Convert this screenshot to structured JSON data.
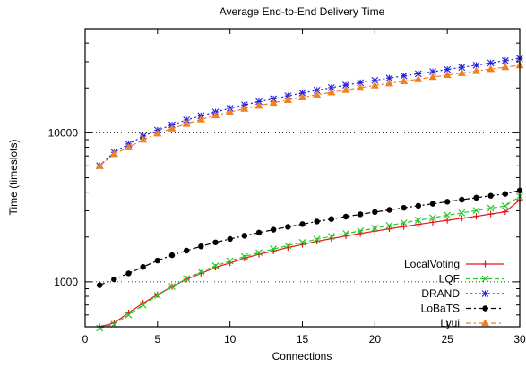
{
  "chart_data": {
    "type": "line",
    "title": "Average End-to-End Delivery Time",
    "xlabel": "Connections",
    "ylabel": "Time (timeslots)",
    "xlim": [
      0,
      30
    ],
    "ylim": [
      500,
      50000
    ],
    "y_scale": "log",
    "x_ticks": [
      0,
      5,
      10,
      15,
      20,
      25,
      30
    ],
    "y_ticks": [
      1000,
      10000
    ],
    "y_tick_labels": [
      "1000",
      "10000"
    ],
    "grid": "horizontal dotted lines at y ticks",
    "legend_position": "bottom-right",
    "x": [
      1,
      2,
      3,
      4,
      5,
      6,
      7,
      8,
      9,
      10,
      11,
      12,
      13,
      14,
      15,
      16,
      17,
      18,
      19,
      20,
      21,
      22,
      23,
      24,
      25,
      26,
      27,
      28,
      29,
      30
    ],
    "series": [
      {
        "name": "LocalVoting",
        "color": "#e8131c",
        "dash": "solid",
        "marker": "plus",
        "values": [
          500,
          530,
          620,
          720,
          820,
          930,
          1040,
          1140,
          1250,
          1340,
          1440,
          1530,
          1610,
          1700,
          1780,
          1870,
          1950,
          2030,
          2110,
          2190,
          2270,
          2350,
          2430,
          2510,
          2590,
          2670,
          2750,
          2850,
          2950,
          3550
        ]
      },
      {
        "name": "LQF",
        "color": "#28c828",
        "dash": "dashed",
        "marker": "cross",
        "values": [
          490,
          520,
          600,
          700,
          810,
          930,
          1050,
          1170,
          1280,
          1380,
          1480,
          1570,
          1660,
          1750,
          1840,
          1930,
          2020,
          2110,
          2200,
          2290,
          2390,
          2490,
          2590,
          2690,
          2800,
          2900,
          3010,
          3120,
          3230,
          3750
        ]
      },
      {
        "name": "DRAND",
        "color": "#1f1fe6",
        "dash": "dotted",
        "marker": "asterisk",
        "values": [
          6000,
          7400,
          8400,
          9500,
          10400,
          11300,
          12200,
          13000,
          13800,
          14600,
          15400,
          16200,
          16900,
          17700,
          18500,
          19300,
          20100,
          20900,
          21700,
          22500,
          23300,
          24100,
          24900,
          25700,
          26600,
          27500,
          28400,
          29400,
          30500,
          31600
        ]
      },
      {
        "name": "LoBaTS",
        "color": "#000000",
        "dash": "dashdot",
        "marker": "dot",
        "values": [
          950,
          1040,
          1140,
          1260,
          1390,
          1510,
          1620,
          1730,
          1840,
          1940,
          2040,
          2140,
          2240,
          2340,
          2440,
          2540,
          2640,
          2740,
          2840,
          2940,
          3040,
          3140,
          3240,
          3340,
          3450,
          3560,
          3670,
          3780,
          3890,
          4100
        ]
      },
      {
        "name": "Lyui",
        "color": "#f08020",
        "dash": "dashdot",
        "marker": "triangle",
        "values": [
          6000,
          7200,
          8000,
          9000,
          9900,
          10700,
          11500,
          12300,
          13100,
          13800,
          14500,
          15200,
          15900,
          16600,
          17300,
          18000,
          18700,
          19400,
          20100,
          20800,
          21500,
          22200,
          22900,
          23700,
          24400,
          25200,
          26000,
          26800,
          27600,
          28400
        ]
      }
    ]
  }
}
